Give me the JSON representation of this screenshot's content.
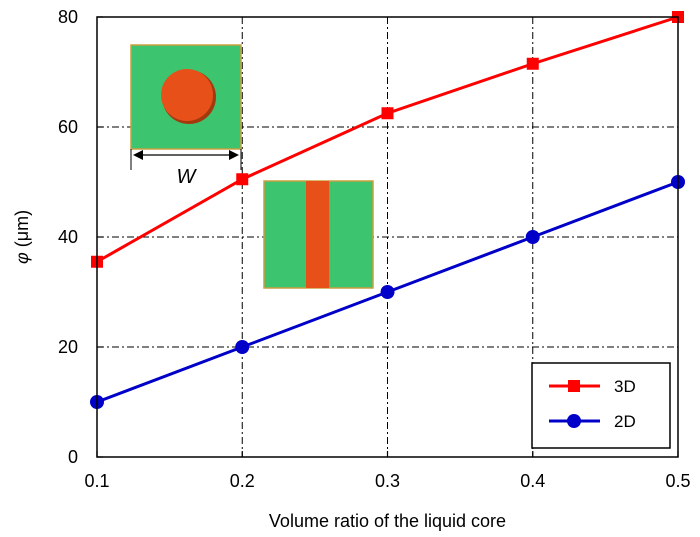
{
  "chart_data": {
    "type": "line",
    "xlabel": "Volume ratio of the liquid core",
    "ylabel_symbol": "φ",
    "ylabel_unit": " (μm)",
    "xlim": [
      0.1,
      0.5
    ],
    "ylim": [
      0,
      80
    ],
    "xticks": [
      "0.1",
      "0.2",
      "0.3",
      "0.4",
      "0.5"
    ],
    "yticks": [
      "0",
      "20",
      "40",
      "60",
      "80"
    ],
    "grid": true,
    "legend_position": "bottom-right",
    "series": [
      {
        "name": "3D",
        "color": "#ff0000",
        "marker": "square",
        "x": [
          0.1,
          0.2,
          0.3,
          0.4,
          0.5
        ],
        "y": [
          35.5,
          50.5,
          62.5,
          71.5,
          80
        ]
      },
      {
        "name": "2D",
        "color": "#0000c8",
        "marker": "circle",
        "x": [
          0.1,
          0.2,
          0.3,
          0.4,
          0.5
        ],
        "y": [
          10,
          20,
          30,
          40,
          50
        ]
      }
    ],
    "insets": {
      "label_w": "W",
      "colors": {
        "matrix": "#3cc46e",
        "core": "#e8501a",
        "border": "#c8a040"
      }
    }
  }
}
